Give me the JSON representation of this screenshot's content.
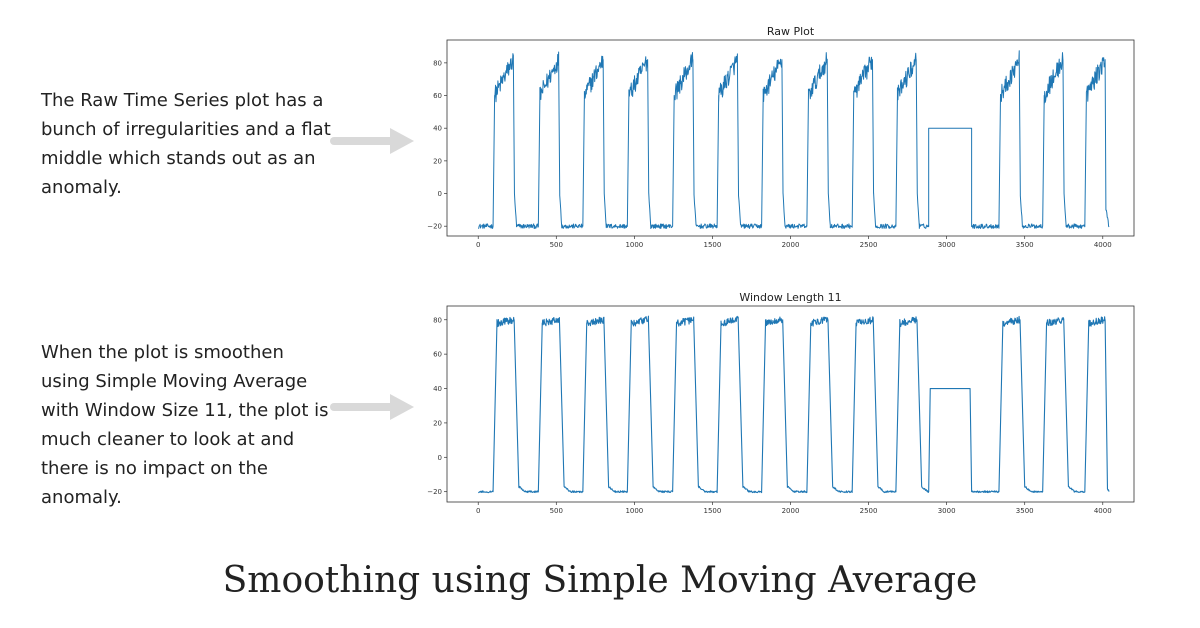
{
  "descriptions": {
    "raw": "The Raw Time Series plot has a bunch of irregularities and a flat middle which stands out as an anomaly.",
    "smoothed": "When the plot is smoothen using Simple Moving Average with Window Size 11, the plot is much cleaner to look at and there is no impact on the anomaly."
  },
  "main_title": "Smoothing using Simple Moving Average",
  "colors": {
    "line": "#1f77b4",
    "arrow": "#d9d9d9",
    "axis": "#333333"
  },
  "chart_data": [
    {
      "type": "line",
      "title": "Raw Plot",
      "xlim": [
        -200,
        4200
      ],
      "ylim": [
        -26,
        94
      ],
      "x_ticks": [
        0,
        500,
        1000,
        1500,
        2000,
        2500,
        3000,
        3500,
        4000
      ],
      "y_ticks": [
        -20,
        0,
        20,
        40,
        60,
        80
      ],
      "grid": false,
      "series": [
        {
          "noise": 4,
          "points": [
            [
              0,
              -20
            ],
            [
              95,
              -20
            ],
            [
              105,
              60
            ],
            [
              225,
              82
            ],
            [
              232,
              0
            ],
            [
              245,
              -20
            ],
            [
              385,
              -20
            ],
            [
              395,
              60
            ],
            [
              515,
              82
            ],
            [
              522,
              0
            ],
            [
              535,
              -20
            ],
            [
              670,
              -20
            ],
            [
              680,
              60
            ],
            [
              800,
              82
            ],
            [
              807,
              0
            ],
            [
              820,
              -20
            ],
            [
              955,
              -20
            ],
            [
              965,
              60
            ],
            [
              1085,
              82
            ],
            [
              1092,
              0
            ],
            [
              1105,
              -20
            ],
            [
              1245,
              -20
            ],
            [
              1255,
              60
            ],
            [
              1375,
              82
            ],
            [
              1382,
              0
            ],
            [
              1395,
              -20
            ],
            [
              1530,
              -20
            ],
            [
              1540,
              60
            ],
            [
              1660,
              82
            ],
            [
              1667,
              0
            ],
            [
              1680,
              -20
            ],
            [
              1815,
              -20
            ],
            [
              1825,
              60
            ],
            [
              1945,
              82
            ],
            [
              1952,
              0
            ],
            [
              1965,
              -20
            ],
            [
              2105,
              -20
            ],
            [
              2115,
              60
            ],
            [
              2235,
              82
            ],
            [
              2242,
              0
            ],
            [
              2255,
              -20
            ],
            [
              2395,
              -20
            ],
            [
              2405,
              60
            ],
            [
              2525,
              82
            ],
            [
              2532,
              0
            ],
            [
              2545,
              -20
            ],
            [
              2675,
              -20
            ],
            [
              2685,
              60
            ],
            [
              2805,
              82
            ],
            [
              2812,
              0
            ],
            [
              2825,
              -20
            ],
            [
              2885,
              -20
            ],
            [
              2885,
              40
            ],
            [
              3160,
              40
            ],
            [
              3160,
              -20
            ],
            [
              3335,
              -20
            ],
            [
              3345,
              60
            ],
            [
              3465,
              82
            ],
            [
              3472,
              0
            ],
            [
              3485,
              -20
            ],
            [
              3615,
              -20
            ],
            [
              3625,
              60
            ],
            [
              3745,
              82
            ],
            [
              3752,
              0
            ],
            [
              3765,
              -20
            ],
            [
              3885,
              -20
            ],
            [
              3895,
              60
            ],
            [
              4015,
              82
            ],
            [
              4020,
              -10
            ],
            [
              4040,
              -20
            ]
          ]
        }
      ]
    },
    {
      "type": "line",
      "title": "Window Length 11",
      "xlim": [
        -200,
        4200
      ],
      "ylim": [
        -26,
        88
      ],
      "x_ticks": [
        0,
        500,
        1000,
        1500,
        2000,
        2500,
        3000,
        3500,
        4000
      ],
      "y_ticks": [
        -20,
        0,
        20,
        40,
        60,
        80
      ],
      "grid": false,
      "series": [
        {
          "noise": 1.5,
          "points": [
            [
              0,
              -20
            ],
            [
              95,
              -20
            ],
            [
              120,
              78
            ],
            [
              230,
              80
            ],
            [
              260,
              -17
            ],
            [
              300,
              -20
            ],
            [
              385,
              -20
            ],
            [
              410,
              78
            ],
            [
              520,
              80
            ],
            [
              550,
              -17
            ],
            [
              590,
              -20
            ],
            [
              670,
              -20
            ],
            [
              695,
              78
            ],
            [
              805,
              80
            ],
            [
              835,
              -17
            ],
            [
              875,
              -20
            ],
            [
              955,
              -20
            ],
            [
              980,
              78
            ],
            [
              1090,
              80
            ],
            [
              1120,
              -17
            ],
            [
              1160,
              -20
            ],
            [
              1245,
              -20
            ],
            [
              1270,
              78
            ],
            [
              1380,
              80
            ],
            [
              1410,
              -17
            ],
            [
              1450,
              -20
            ],
            [
              1530,
              -20
            ],
            [
              1555,
              78
            ],
            [
              1665,
              80
            ],
            [
              1695,
              -17
            ],
            [
              1735,
              -20
            ],
            [
              1815,
              -20
            ],
            [
              1840,
              78
            ],
            [
              1950,
              80
            ],
            [
              1980,
              -17
            ],
            [
              2020,
              -20
            ],
            [
              2105,
              -20
            ],
            [
              2130,
              78
            ],
            [
              2240,
              80
            ],
            [
              2270,
              -17
            ],
            [
              2310,
              -20
            ],
            [
              2395,
              -20
            ],
            [
              2420,
              78
            ],
            [
              2530,
              80
            ],
            [
              2560,
              -17
            ],
            [
              2600,
              -20
            ],
            [
              2675,
              -20
            ],
            [
              2700,
              78
            ],
            [
              2810,
              80
            ],
            [
              2840,
              -17
            ],
            [
              2880,
              -20
            ],
            [
              2885,
              -20
            ],
            [
              2895,
              40
            ],
            [
              3150,
              40
            ],
            [
              3160,
              -20
            ],
            [
              3335,
              -20
            ],
            [
              3360,
              78
            ],
            [
              3470,
              80
            ],
            [
              3500,
              -17
            ],
            [
              3540,
              -20
            ],
            [
              3615,
              -20
            ],
            [
              3640,
              78
            ],
            [
              3750,
              80
            ],
            [
              3780,
              -17
            ],
            [
              3820,
              -20
            ],
            [
              3885,
              -20
            ],
            [
              3910,
              78
            ],
            [
              4015,
              80
            ],
            [
              4030,
              -18
            ],
            [
              4040,
              -20
            ]
          ]
        }
      ]
    }
  ]
}
